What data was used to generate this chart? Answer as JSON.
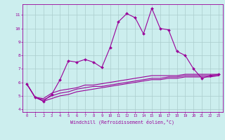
{
  "x": [
    0,
    1,
    2,
    3,
    4,
    5,
    6,
    7,
    8,
    9,
    10,
    11,
    12,
    13,
    14,
    15,
    16,
    17,
    18,
    19,
    20,
    21,
    22,
    23
  ],
  "line1": [
    5.9,
    4.9,
    4.6,
    5.1,
    6.2,
    7.6,
    7.5,
    7.7,
    7.5,
    7.1,
    8.6,
    10.5,
    11.1,
    10.8,
    9.6,
    11.5,
    10.0,
    9.9,
    8.3,
    8.0,
    7.0,
    6.3,
    6.5,
    6.6
  ],
  "line2": [
    5.9,
    4.9,
    4.8,
    5.2,
    5.4,
    5.5,
    5.6,
    5.8,
    5.8,
    5.9,
    6.0,
    6.1,
    6.2,
    6.3,
    6.4,
    6.5,
    6.5,
    6.5,
    6.5,
    6.6,
    6.6,
    6.6,
    6.6,
    6.6
  ],
  "line3": [
    5.9,
    4.9,
    4.7,
    5.0,
    5.2,
    5.3,
    5.5,
    5.6,
    5.7,
    5.7,
    5.8,
    5.9,
    6.0,
    6.1,
    6.2,
    6.3,
    6.3,
    6.4,
    6.4,
    6.5,
    6.5,
    6.5,
    6.5,
    6.5
  ],
  "line4": [
    5.9,
    4.9,
    4.6,
    4.8,
    5.0,
    5.1,
    5.3,
    5.4,
    5.5,
    5.6,
    5.7,
    5.8,
    5.9,
    6.0,
    6.1,
    6.2,
    6.2,
    6.3,
    6.3,
    6.4,
    6.4,
    6.4,
    6.4,
    6.5
  ],
  "line_color": "#990099",
  "bg_color": "#cceeee",
  "grid_color": "#aacccc",
  "xlabel": "Windchill (Refroidissement éolien,°C)",
  "ylabel_ticks": [
    4,
    5,
    6,
    7,
    8,
    9,
    10,
    11
  ],
  "xlim": [
    -0.5,
    23.5
  ],
  "ylim": [
    3.8,
    11.8
  ]
}
